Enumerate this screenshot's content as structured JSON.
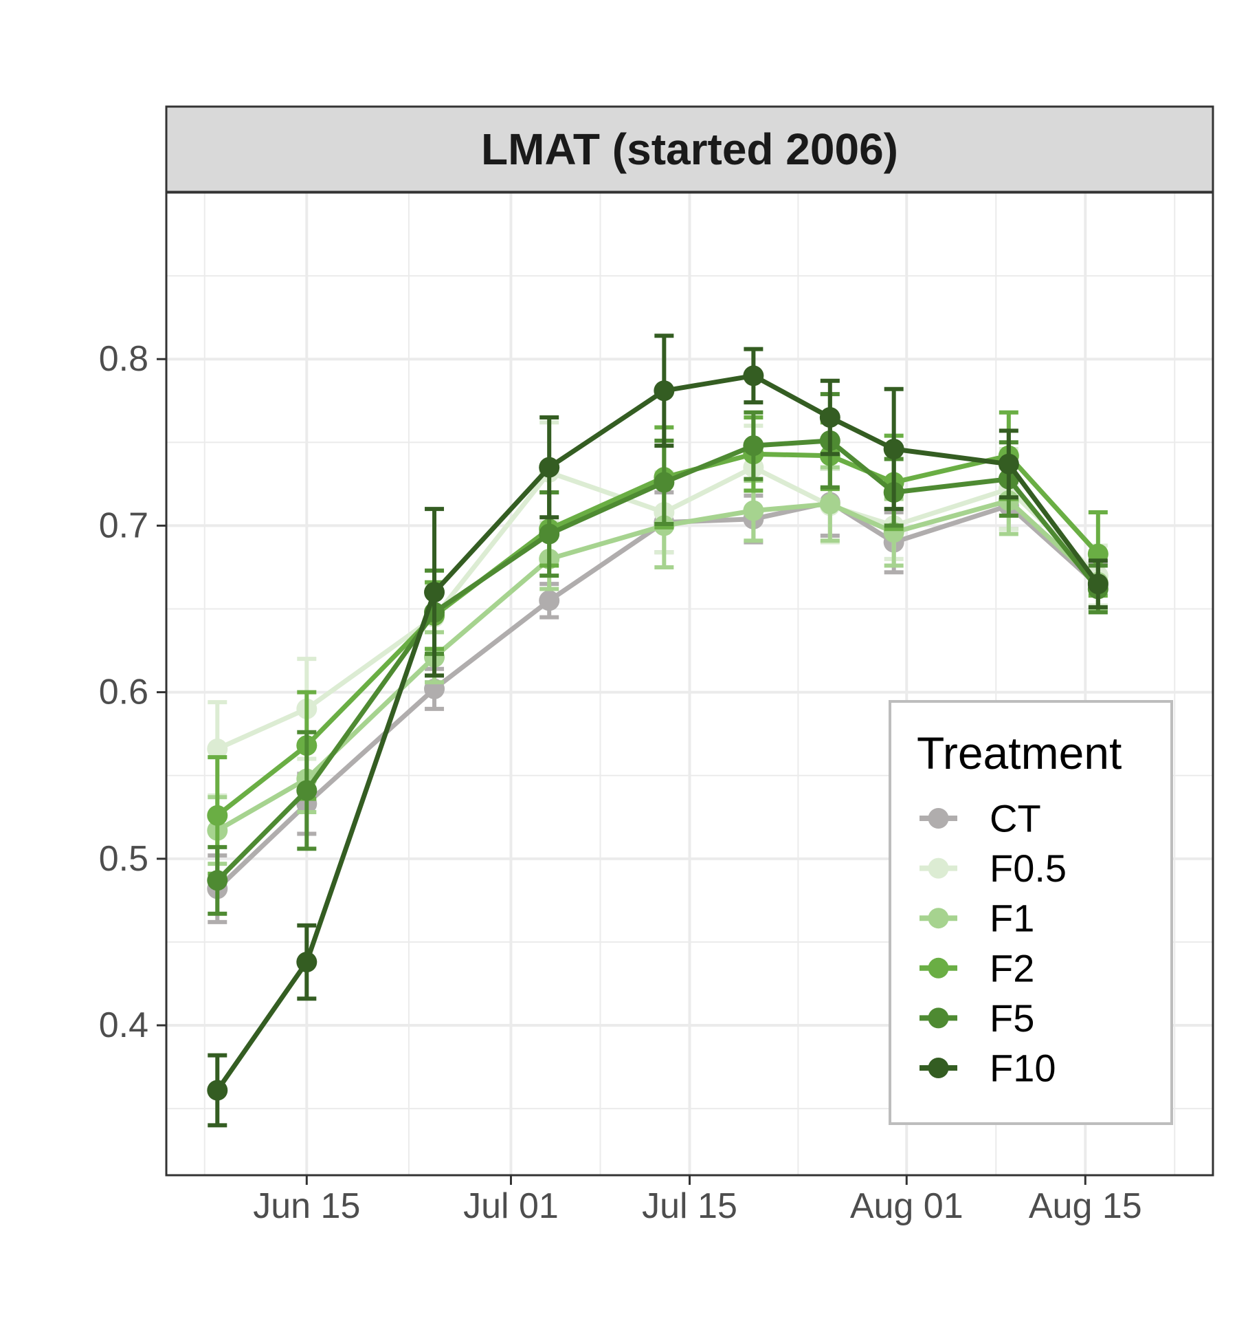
{
  "chart_data": {
    "type": "line",
    "title": "LMAT (started 2006)",
    "xlabel": "",
    "ylabel": "",
    "x": [
      "2006-06-08",
      "2006-06-15",
      "2006-06-25",
      "2006-07-04",
      "2006-07-13",
      "2006-07-20",
      "2006-07-26",
      "2006-07-31",
      "2006-08-09",
      "2006-08-16"
    ],
    "x_axis": {
      "type": "date",
      "range": [
        "2006-06-04",
        "2006-08-25"
      ],
      "major_ticks": [
        "2006-06-15",
        "2006-07-01",
        "2006-07-15",
        "2006-08-01",
        "2006-08-15"
      ],
      "tick_labels": [
        "Jun 15",
        "Jul 01",
        "Jul 15",
        "Aug 01",
        "Aug 15"
      ]
    },
    "y_axis": {
      "range": [
        0.31,
        0.9
      ],
      "ticks": [
        0.4,
        0.5,
        0.6,
        0.7,
        0.8
      ],
      "tick_labels": [
        "0.4",
        "0.5",
        "0.6",
        "0.7",
        "0.8"
      ]
    },
    "grid": true,
    "legend": {
      "title": "Treatment",
      "position": "bottom-right inside"
    },
    "series": [
      {
        "name": "CT",
        "color": "#b0adad",
        "values": [
          0.482,
          0.533,
          0.602,
          0.655,
          0.702,
          0.704,
          0.714,
          0.69,
          0.712,
          0.664
        ],
        "error": [
          0.02,
          0.018,
          0.012,
          0.01,
          0.018,
          0.014,
          0.02,
          0.018,
          0.014,
          0.014
        ]
      },
      {
        "name": "F0.5",
        "color": "#dcecd3",
        "values": [
          0.566,
          0.59,
          0.645,
          0.732,
          0.708,
          0.735,
          0.712,
          0.7,
          0.722,
          0.67
        ],
        "error": [
          0.028,
          0.03,
          0.02,
          0.03,
          0.024,
          0.025,
          0.022,
          0.02,
          0.024,
          0.018
        ]
      },
      {
        "name": "F1",
        "color": "#a6d38f",
        "values": [
          0.517,
          0.548,
          0.621,
          0.68,
          0.7,
          0.709,
          0.713,
          0.696,
          0.715,
          0.666
        ],
        "error": [
          0.02,
          0.02,
          0.015,
          0.018,
          0.025,
          0.018,
          0.022,
          0.02,
          0.02,
          0.016
        ]
      },
      {
        "name": "F2",
        "color": "#6aae44",
        "values": [
          0.526,
          0.568,
          0.646,
          0.698,
          0.729,
          0.743,
          0.742,
          0.726,
          0.742,
          0.683
        ],
        "error": [
          0.035,
          0.032,
          0.02,
          0.022,
          0.03,
          0.022,
          0.02,
          0.028,
          0.026,
          0.025
        ]
      },
      {
        "name": "F5",
        "color": "#4e8a32",
        "values": [
          0.487,
          0.541,
          0.648,
          0.695,
          0.726,
          0.748,
          0.751,
          0.72,
          0.728,
          0.662
        ],
        "error": [
          0.02,
          0.035,
          0.025,
          0.025,
          0.025,
          0.02,
          0.028,
          0.02,
          0.022,
          0.014
        ]
      },
      {
        "name": "F10",
        "color": "#345d22",
        "values": [
          0.361,
          0.438,
          0.66,
          0.735,
          0.781,
          0.79,
          0.765,
          0.746,
          0.737,
          0.665
        ],
        "error": [
          0.021,
          0.022,
          0.05,
          0.03,
          0.033,
          0.016,
          0.022,
          0.036,
          0.02,
          0.014
        ]
      }
    ]
  }
}
